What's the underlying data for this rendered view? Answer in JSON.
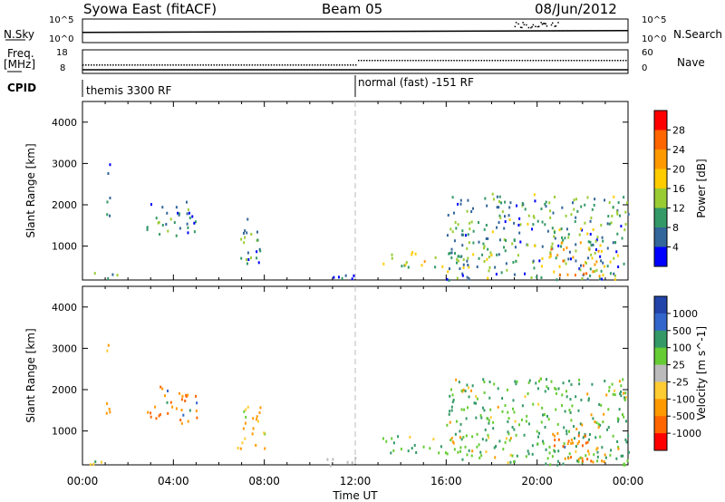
{
  "header": {
    "station": "Syowa East (fitACF)",
    "beam": "Beam 05",
    "date": "08/Jun/2012"
  },
  "left_labels": {
    "nsky": "N.Sky",
    "freq_line1": "Freq.",
    "freq_line2": "[MHz]",
    "cpid": "CPID"
  },
  "right_labels": {
    "nsearch": "N.Search",
    "nave": "Nave"
  },
  "noise_axis": {
    "left_top": "10^5",
    "left_bottom": "10^0",
    "right_top": "10^5",
    "right_bottom": "10^0"
  },
  "freq_axis": {
    "left_top": "18",
    "left_bottom": "8",
    "right_top": "60",
    "right_bottom": "0"
  },
  "cpid_segments": [
    {
      "label": "themis 3300 RF",
      "start_hour": 0
    },
    {
      "label": "normal (fast) -151 RF",
      "start_hour": 12
    }
  ],
  "panels": {
    "power": {
      "ylabel": "Slant Range [km]",
      "cbar_label": "Power [dB]",
      "cbar_ticks": [
        "28",
        "24",
        "20",
        "16",
        "12",
        "8",
        "4"
      ],
      "cbar_colors": [
        "#ff0000",
        "#ff6600",
        "#ff9900",
        "#ffcc00",
        "#99cc33",
        "#339966",
        "#336699",
        "#0000ff"
      ]
    },
    "velocity": {
      "ylabel": "Slant Range [km]",
      "cbar_label": "Velocity [m s^-1]",
      "cbar_ticks": [
        "1000",
        "500",
        "100",
        "25",
        "-25",
        "-100",
        "-500",
        "-1000"
      ],
      "cbar_colors": [
        "#2244aa",
        "#3366cc",
        "#339966",
        "#66cc33",
        "#bbbbbb",
        "#ffcc33",
        "#ff9900",
        "#ff6600",
        "#ff0000"
      ]
    }
  },
  "x_axis": {
    "title": "Time UT",
    "ticks": [
      "00:00",
      "04:00",
      "08:00",
      "12:00",
      "16:00",
      "20:00",
      "00:00"
    ]
  },
  "chart_data": {
    "type": "heatmap",
    "x_range_hours": [
      0,
      24
    ],
    "y_range_km": [
      180,
      4500
    ],
    "y_ticks": [
      "1000",
      "2000",
      "3000",
      "4000"
    ],
    "cpid_change_hour": 12,
    "scatter_regions": [
      {
        "hours": [
          0.3,
          1.5
        ],
        "range_km": [
          180,
          400
        ],
        "power_db": 12,
        "velocity": -100
      },
      {
        "hours": [
          1.0,
          1.2
        ],
        "range_km": [
          1400,
          3300
        ],
        "power_db": 8,
        "velocity": -100
      },
      {
        "hours": [
          2.8,
          5.0
        ],
        "range_km": [
          1200,
          2100
        ],
        "power_db": 10,
        "velocity": -500
      },
      {
        "hours": [
          6.8,
          8.0
        ],
        "range_km": [
          600,
          1700
        ],
        "power_db": 10,
        "velocity": -100
      },
      {
        "hours": [
          10.5,
          12.0
        ],
        "range_km": [
          180,
          400
        ],
        "power_db": 6,
        "velocity": -25
      },
      {
        "hours": [
          13.0,
          18.0
        ],
        "range_km": [
          500,
          900
        ],
        "power_db": 16,
        "velocity": 100
      },
      {
        "hours": [
          16.0,
          24.0
        ],
        "range_km": [
          200,
          2300
        ],
        "power_db": 12,
        "velocity": 100
      },
      {
        "hours": [
          20.5,
          23.0
        ],
        "range_km": [
          300,
          1200
        ],
        "power_db": 22,
        "velocity": -500
      }
    ]
  }
}
